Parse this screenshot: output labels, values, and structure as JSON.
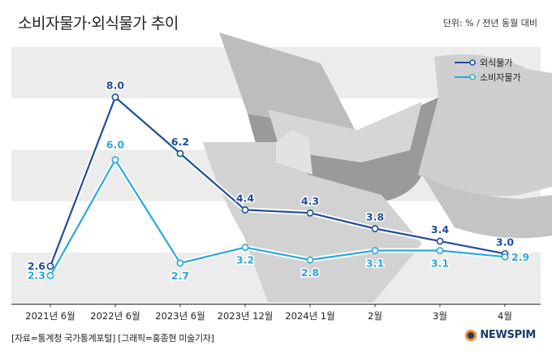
{
  "header": {
    "title": "소비자물가·외식물가 추이",
    "unit": "단위: % / 전년 동월 대비"
  },
  "footer": {
    "source": "[자료=통계청 국가통계포털] [그래픽=홍종현 미술기자]",
    "brand": "NEWSPIM"
  },
  "colors": {
    "dining": "#1f4e9c",
    "consumer": "#29a8e0",
    "band": "#ececec"
  },
  "chart_data": {
    "type": "line",
    "title": "소비자물가·외식물가 추이",
    "categories": [
      "2021년 6월",
      "2022년 6월",
      "2023년 6월",
      "2023년 12월",
      "2024년 1월",
      "2월",
      "3월",
      "4월"
    ],
    "series": [
      {
        "name": "외식물가",
        "values": [
          2.6,
          8.0,
          6.2,
          4.4,
          4.3,
          3.8,
          3.4,
          3.0
        ]
      },
      {
        "name": "소비자물가",
        "values": [
          2.3,
          6.0,
          2.7,
          3.2,
          2.8,
          3.1,
          3.1,
          2.9
        ]
      }
    ],
    "ylim": [
      1.4,
      9.6
    ],
    "legend": "top-right",
    "grid": "horizontal bands"
  }
}
